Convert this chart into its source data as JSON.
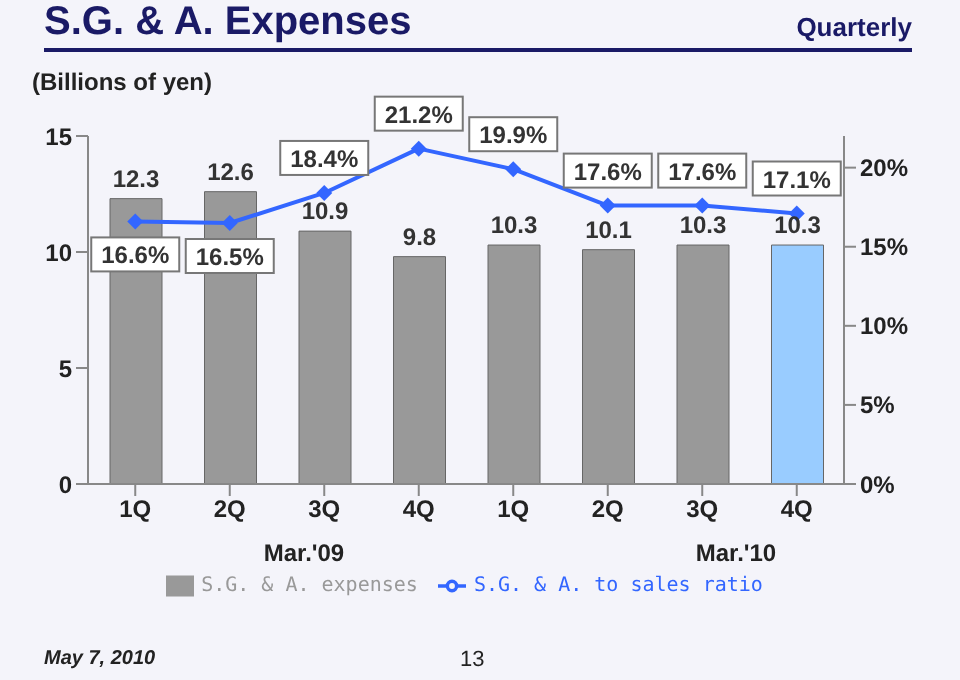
{
  "chart_data": {
    "type": "bar",
    "title": "S.G. & A. Expenses",
    "subtitle": "Quarterly",
    "ylabel": "(Billions of yen)",
    "categories": [
      "1Q",
      "2Q",
      "3Q",
      "4Q",
      "1Q",
      "2Q",
      "3Q",
      "4Q"
    ],
    "series": [
      {
        "name": "S.G. & A. expenses",
        "colors": [
          "#999999",
          "#999999",
          "#999999",
          "#999999",
          "#999999",
          "#999999",
          "#999999",
          "#99ccff"
        ],
        "values": [
          12.3,
          12.6,
          10.9,
          9.8,
          10.3,
          10.1,
          10.3,
          10.3
        ],
        "value_labels": [
          "12.3",
          "12.6",
          "10.9",
          "9.8",
          "10.3",
          "10.1",
          "10.3",
          "10.3"
        ]
      },
      {
        "name": "S.G. & A. to sales ratio",
        "type": "line",
        "axis": "y2",
        "color": "#3366ff",
        "values": [
          16.6,
          16.5,
          18.4,
          21.2,
          19.9,
          17.6,
          17.6,
          17.1
        ],
        "value_labels": [
          "16.6%",
          "16.5%",
          "18.4%",
          "21.2%",
          "19.9%",
          "17.6%",
          "17.6%",
          "17.1%"
        ]
      }
    ],
    "ylim": [
      0,
      15
    ],
    "yticks": [
      0,
      5,
      10,
      15
    ],
    "y2lim": [
      0,
      22
    ],
    "y2ticks": [
      {
        "value": 0,
        "label": "0%"
      },
      {
        "value": 5,
        "label": "5%"
      },
      {
        "value": 10,
        "label": "10%"
      },
      {
        "value": 15,
        "label": "15%"
      },
      {
        "value": 20,
        "label": "20%"
      }
    ],
    "marker": "diamond",
    "legend": "bottom",
    "grid": false,
    "annotations": [
      "Mar.'09",
      "Mar.'10",
      "May 7, 2010",
      "13"
    ]
  }
}
